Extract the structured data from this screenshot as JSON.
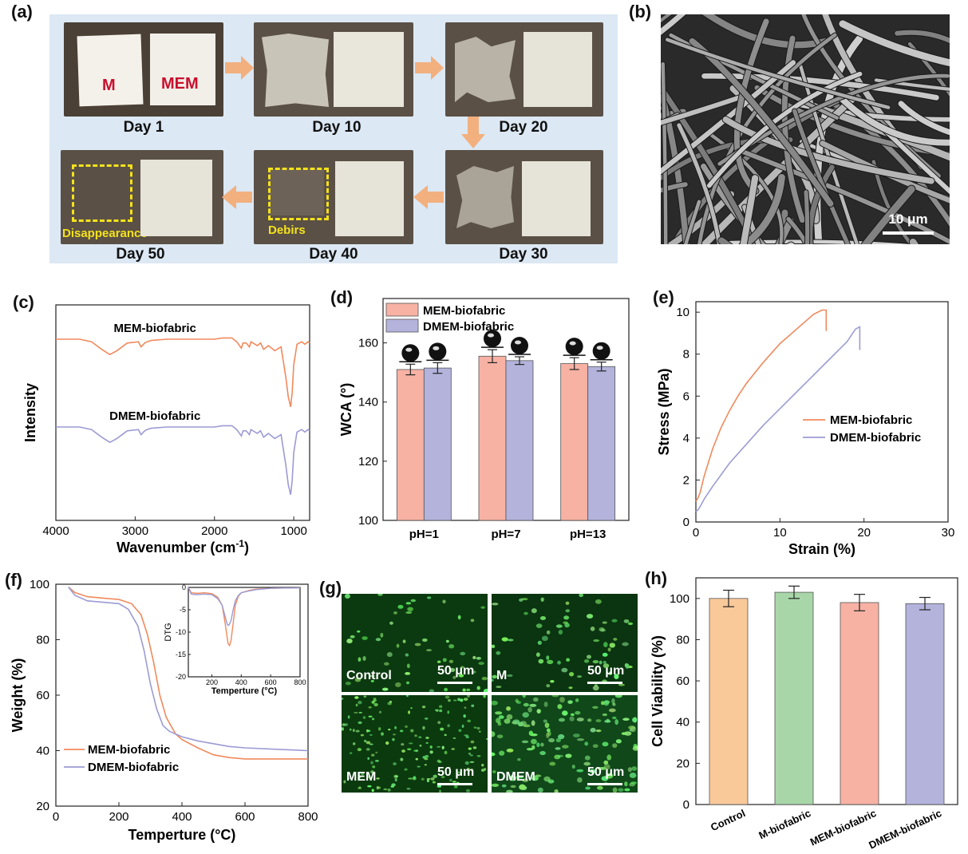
{
  "panel_labels": {
    "a": "(a)",
    "b": "(b)",
    "c": "(c)",
    "d": "(d)",
    "e": "(e)",
    "f": "(f)",
    "g": "(g)",
    "h": "(h)"
  },
  "panel_a": {
    "sample_labels": [
      "M",
      "MEM"
    ],
    "days": [
      "Day 1",
      "Day 10",
      "Day 20",
      "Day 30",
      "Day 40",
      "Day 50"
    ],
    "annotations": {
      "debris": "Debirs",
      "disappearance": "Disappearance"
    },
    "colors": {
      "background": "#dce8f4",
      "arrow": "#f2b07f",
      "highlight": "#f5e21a",
      "text_red": "#c8102e"
    }
  },
  "panel_b": {
    "scale_bar": "10 μm"
  },
  "panel_g": {
    "scale_bar": "50 μm",
    "images": [
      "Control",
      "M",
      "MEM",
      "DMEM"
    ]
  },
  "chart_data": [
    {
      "panel": "c",
      "type": "line",
      "xlabel": "Wavenumber (cm",
      "xlabel_sup": "-1",
      "xlabel_end": ")",
      "ylabel": "Intensity",
      "xlim": [
        4000,
        800
      ],
      "xticks": [
        4000,
        3000,
        2000,
        1000
      ],
      "series": [
        {
          "name": "MEM-biofabric",
          "color": "#f08a5d",
          "x": [
            4000,
            3700,
            3550,
            3420,
            3320,
            3230,
            3100,
            2960,
            2925,
            2880,
            2850,
            2800,
            2600,
            2400,
            2200,
            2000,
            1900,
            1780,
            1720,
            1660,
            1640,
            1600,
            1560,
            1540,
            1460,
            1420,
            1380,
            1320,
            1240,
            1160,
            1100,
            1070,
            1040,
            1020,
            1000,
            960,
            900,
            860,
            820,
            800
          ],
          "y": [
            50,
            50,
            48,
            42,
            38,
            41,
            47,
            48,
            44,
            47,
            48,
            49,
            50,
            50,
            50,
            50,
            51,
            51,
            48,
            43,
            47,
            47,
            44,
            48,
            45,
            47,
            42,
            45,
            41,
            44,
            20,
            5,
            -3,
            8,
            30,
            46,
            48,
            46,
            48,
            47
          ]
        },
        {
          "name": "DMEM-biofabric",
          "color": "#9b9bd4",
          "x": [
            4000,
            3700,
            3550,
            3420,
            3320,
            3230,
            3100,
            2960,
            2925,
            2880,
            2850,
            2800,
            2600,
            2400,
            2200,
            2000,
            1900,
            1780,
            1720,
            1660,
            1640,
            1600,
            1560,
            1540,
            1460,
            1420,
            1380,
            1320,
            1240,
            1160,
            1100,
            1070,
            1040,
            1020,
            1000,
            960,
            900,
            860,
            820,
            800
          ],
          "y": [
            50,
            50,
            48,
            42,
            38,
            41,
            47,
            48,
            44,
            47,
            48,
            49,
            50,
            50,
            50,
            50,
            51,
            51,
            48,
            43,
            47,
            47,
            44,
            48,
            45,
            47,
            42,
            45,
            41,
            44,
            20,
            5,
            -3,
            8,
            30,
            46,
            48,
            46,
            48,
            47
          ]
        }
      ]
    },
    {
      "panel": "d",
      "type": "bar",
      "categories": [
        "pH=1",
        "pH=7",
        "pH=13"
      ],
      "ylabel": "WCA (°)",
      "ylim": [
        100,
        175
      ],
      "yticks": [
        100,
        120,
        140,
        160
      ],
      "series": [
        {
          "name": "MEM-biofabric",
          "color": "#f7b2a4",
          "values": [
            151,
            155.5,
            153
          ],
          "errors": [
            1.8,
            2.2,
            2.0
          ]
        },
        {
          "name": "DMEM-biofabric",
          "color": "#b3b3dc",
          "values": [
            151.5,
            154,
            152
          ],
          "errors": [
            1.8,
            1.3,
            1.5
          ]
        }
      ]
    },
    {
      "panel": "e",
      "type": "line",
      "xlabel": "Strain (%)",
      "ylabel": "Stress (MPa)",
      "xlim": [
        0,
        30
      ],
      "ylim": [
        0,
        10.5
      ],
      "xticks": [
        0,
        10,
        20,
        30
      ],
      "yticks": [
        0,
        2,
        4,
        6,
        8,
        10
      ],
      "series": [
        {
          "name": "MEM-biofabric",
          "color": "#f08a5d",
          "x": [
            0,
            0.2,
            0.5,
            1,
            2,
            3,
            4,
            5,
            6,
            8,
            10,
            12,
            14,
            15,
            15.5,
            15.5
          ],
          "y": [
            1.0,
            1.1,
            1.4,
            2.2,
            3.5,
            4.5,
            5.3,
            6.0,
            6.6,
            7.6,
            8.5,
            9.2,
            9.9,
            10.1,
            10.1,
            9.1
          ]
        },
        {
          "name": "DMEM-biofabric",
          "color": "#9b9bd4",
          "x": [
            0,
            0.3,
            0.6,
            1,
            2,
            4,
            6,
            8,
            10,
            12,
            14,
            16,
            18,
            19,
            19.5,
            19.5
          ],
          "y": [
            0.5,
            0.6,
            0.8,
            1.1,
            1.7,
            2.8,
            3.7,
            4.6,
            5.4,
            6.2,
            7.0,
            7.8,
            8.6,
            9.2,
            9.3,
            8.2
          ]
        }
      ]
    },
    {
      "panel": "f",
      "type": "line",
      "xlabel": "Temperture (°C)",
      "ylabel": "Weight (%)",
      "xlim": [
        0,
        800
      ],
      "ylim": [
        20,
        100
      ],
      "xticks": [
        0,
        200,
        400,
        600,
        800
      ],
      "yticks": [
        20,
        40,
        60,
        80,
        100
      ],
      "series": [
        {
          "name": "MEM-biofabric",
          "color": "#f08a5d",
          "x": [
            40,
            60,
            100,
            150,
            200,
            240,
            270,
            290,
            310,
            330,
            350,
            380,
            400,
            450,
            500,
            550,
            600,
            700,
            800
          ],
          "y": [
            99,
            97,
            95.5,
            95,
            94.5,
            93,
            89,
            82,
            72,
            60,
            52,
            46,
            44,
            41,
            38.5,
            37.5,
            37,
            37,
            37
          ]
        },
        {
          "name": "DMEM-biofabric",
          "color": "#9b9bd4",
          "x": [
            40,
            60,
            100,
            150,
            200,
            230,
            260,
            280,
            300,
            320,
            340,
            360,
            400,
            450,
            500,
            550,
            600,
            700,
            800
          ],
          "y": [
            99,
            96,
            94,
            93.5,
            93,
            91,
            85,
            76,
            64,
            55,
            49,
            47,
            45,
            43.5,
            42.5,
            41.5,
            41,
            40.5,
            40
          ]
        }
      ]
    },
    {
      "panel": "f-inset",
      "type": "line",
      "xlabel": "Temperture (°C)",
      "ylabel": "DTG",
      "xlim": [
        40,
        800
      ],
      "ylim": [
        -20,
        0
      ],
      "xticks": [
        200,
        400,
        600,
        800
      ],
      "yticks": [
        0,
        -5,
        -10,
        -15,
        -20
      ],
      "series": [
        {
          "name": "MEM-biofabric",
          "color": "#f08a5d",
          "x": [
            40,
            60,
            100,
            150,
            200,
            240,
            270,
            290,
            310,
            320,
            330,
            345,
            360,
            380,
            400,
            450,
            500,
            600,
            800
          ],
          "y": [
            0,
            -1.2,
            -1.3,
            -1.2,
            -1.4,
            -2.2,
            -4,
            -8,
            -12.5,
            -13,
            -12,
            -8,
            -4,
            -2,
            -1.2,
            -0.7,
            -0.4,
            -0.2,
            -0.1
          ]
        },
        {
          "name": "DMEM-biofabric",
          "color": "#9b9bd4",
          "x": [
            40,
            60,
            100,
            150,
            200,
            240,
            270,
            290,
            305,
            315,
            330,
            345,
            360,
            380,
            400,
            450,
            500,
            600,
            800
          ],
          "y": [
            0,
            -1.5,
            -1.6,
            -1.5,
            -1.6,
            -2.5,
            -4,
            -6.5,
            -8.3,
            -8.5,
            -7.5,
            -5,
            -3,
            -1.8,
            -1.2,
            -0.8,
            -0.5,
            -0.2,
            -0.1
          ]
        }
      ]
    },
    {
      "panel": "h",
      "type": "bar",
      "categories": [
        "Control",
        "M-biofabric",
        "MEM-biofabric",
        "DMEM-biofabric"
      ],
      "ylabel": "Cell Viability (%)",
      "ylim": [
        0,
        110
      ],
      "yticks": [
        0,
        20,
        40,
        60,
        80,
        100
      ],
      "values": [
        100,
        103,
        98,
        97.5
      ],
      "errors": [
        4,
        3,
        4,
        3
      ],
      "colors": [
        "#f9c99a",
        "#a8d6a8",
        "#f7b2a4",
        "#b3b3dc"
      ]
    }
  ]
}
